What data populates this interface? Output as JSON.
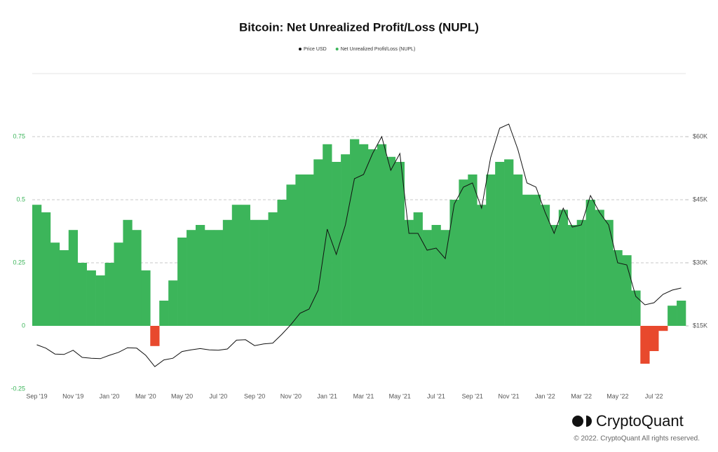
{
  "chart_data": {
    "type": "combo",
    "title": "Bitcoin: Net Unrealized Profit/Loss (NUPL)",
    "categories": [
      "Sep '19",
      null,
      null,
      null,
      "Nov '19",
      null,
      null,
      null,
      "Jan '20",
      null,
      null,
      null,
      "Mar '20",
      null,
      null,
      null,
      "May '20",
      null,
      null,
      null,
      "Jul '20",
      null,
      null,
      null,
      "Sep '20",
      null,
      null,
      null,
      "Nov '20",
      null,
      null,
      null,
      "Jan '21",
      null,
      null,
      null,
      "Mar '21",
      null,
      null,
      null,
      "May '21",
      null,
      null,
      null,
      "Jul '21",
      null,
      null,
      null,
      "Sep '21",
      null,
      null,
      null,
      "Nov '21",
      null,
      null,
      null,
      "Jan '22",
      null,
      null,
      null,
      "Mar '22",
      null,
      null,
      null,
      "May '22",
      null,
      null,
      null,
      "Jul '22",
      null,
      null,
      null
    ],
    "series": [
      {
        "name": "Price USD",
        "type": "line",
        "axis": "y2",
        "color": "#111111",
        "values": [
          10500,
          9700,
          8300,
          8200,
          9200,
          7500,
          7300,
          7200,
          8000,
          8700,
          9800,
          9700,
          8000,
          5300,
          6900,
          7300,
          8900,
          9300,
          9600,
          9300,
          9200,
          9500,
          11600,
          11700,
          10300,
          10700,
          10900,
          13000,
          15300,
          18000,
          19000,
          23500,
          38000,
          32000,
          39000,
          50000,
          51000,
          56000,
          60000,
          52000,
          56000,
          37000,
          37000,
          33000,
          33500,
          31000,
          44000,
          48000,
          49000,
          43000,
          55000,
          62000,
          63000,
          57000,
          49000,
          48000,
          42000,
          37000,
          43000,
          38500,
          39000,
          46000,
          42000,
          39000,
          30000,
          29500,
          22000,
          20000,
          20500,
          22500,
          23500,
          24000
        ]
      },
      {
        "name": "Net Unrealized Profit/Loss (NUPL)",
        "type": "bar",
        "color": "#3cb55a",
        "negative_color": "#e8492d",
        "values": [
          0.48,
          0.45,
          0.33,
          0.3,
          0.38,
          0.25,
          0.22,
          0.2,
          0.25,
          0.33,
          0.42,
          0.38,
          0.22,
          -0.08,
          0.1,
          0.18,
          0.35,
          0.38,
          0.4,
          0.38,
          0.38,
          0.42,
          0.48,
          0.48,
          0.42,
          0.42,
          0.45,
          0.5,
          0.56,
          0.6,
          0.6,
          0.66,
          0.72,
          0.65,
          0.68,
          0.74,
          0.72,
          0.7,
          0.72,
          0.67,
          0.65,
          0.42,
          0.45,
          0.38,
          0.4,
          0.38,
          0.5,
          0.58,
          0.6,
          0.48,
          0.6,
          0.65,
          0.66,
          0.6,
          0.52,
          0.52,
          0.48,
          0.4,
          0.46,
          0.4,
          0.42,
          0.5,
          0.46,
          0.42,
          0.3,
          0.28,
          0.14,
          -0.15,
          -0.1,
          -0.02,
          0.08,
          0.1
        ]
      }
    ],
    "ylim": [
      -0.25,
      1.0
    ],
    "yticks": [
      -0.25,
      0,
      0.25,
      0.5,
      0.75
    ],
    "ytick_color": "#3cb55a",
    "y2lim": [
      0,
      75000
    ],
    "y2ticks": [
      {
        "value": 15000,
        "label": "$15K"
      },
      {
        "value": 30000,
        "label": "$30K"
      },
      {
        "value": 45000,
        "label": "$45K"
      },
      {
        "value": 60000,
        "label": "$60K"
      }
    ],
    "grid": true
  },
  "footer": {
    "brand": "CryptoQuant",
    "copyright": "© 2022. CryptoQuant All rights reserved."
  }
}
